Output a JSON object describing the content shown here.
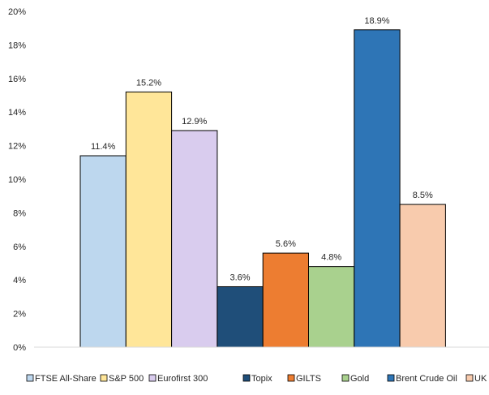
{
  "chart_data": {
    "type": "bar",
    "categories": [
      "FTSE All-Share",
      "S&P 500",
      "Eurofirst 300",
      "Topix",
      "GILTS",
      "Gold",
      "Brent Crude Oil",
      "UK Property"
    ],
    "values": [
      11.4,
      15.2,
      12.9,
      3.6,
      5.6,
      4.8,
      18.9,
      8.5
    ],
    "data_labels": [
      "11.4%",
      "15.2%",
      "12.9%",
      "3.6%",
      "5.6%",
      "4.8%",
      "18.9%",
      "8.5%"
    ],
    "colors": [
      "#BDD7EE",
      "#FFE699",
      "#D9CCEE",
      "#1F4E79",
      "#ED7D31",
      "#A9D18E",
      "#2E75B6",
      "#F8CBAD"
    ],
    "ylim": [
      0,
      20
    ],
    "yticks": [
      0,
      2,
      4,
      6,
      8,
      10,
      12,
      14,
      16,
      18,
      20
    ],
    "ytick_labels": [
      "0%",
      "2%",
      "4%",
      "6%",
      "8%",
      "10%",
      "12%",
      "14%",
      "16%",
      "18%",
      "20%"
    ],
    "legend_position": "bottom",
    "grid": false,
    "title": "",
    "xlabel": "",
    "ylabel": ""
  }
}
